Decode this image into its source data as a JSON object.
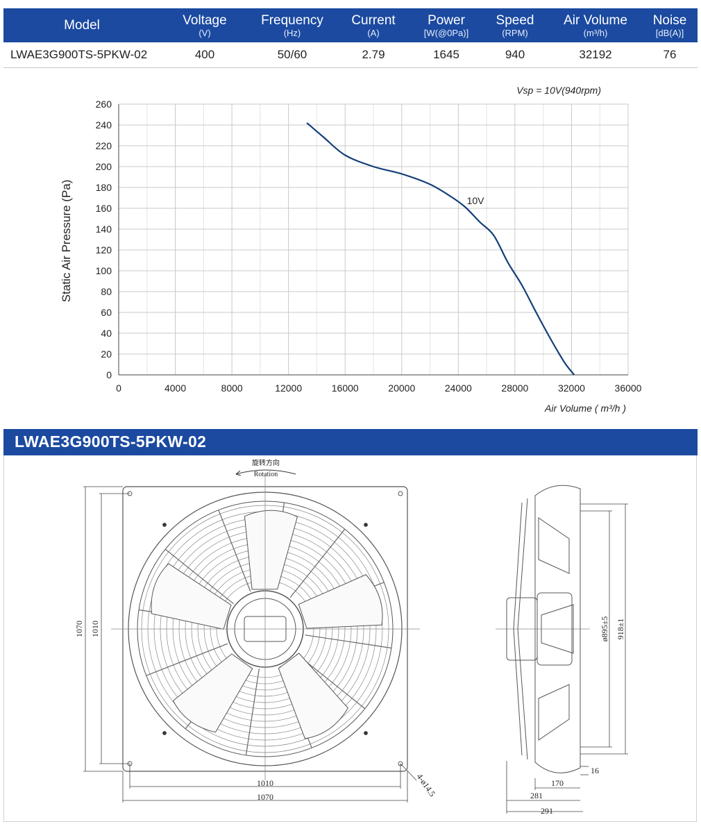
{
  "spec_table": {
    "headers": [
      {
        "label": "Model",
        "unit": ""
      },
      {
        "label": "Voltage",
        "unit": "(V)"
      },
      {
        "label": "Frequency",
        "unit": "(Hz)"
      },
      {
        "label": "Current",
        "unit": "(A)"
      },
      {
        "label": "Power",
        "unit": "[W(@0Pa)]"
      },
      {
        "label": "Speed",
        "unit": "(RPM)"
      },
      {
        "label": "Air Volume",
        "unit": "(m³/h)"
      },
      {
        "label": "Noise",
        "unit": "[dB(A)]"
      }
    ],
    "row": [
      "LWAE3G900TS-5PKW-02",
      "400",
      "50/60",
      "2.79",
      "1645",
      "940",
      "32192",
      "76"
    ]
  },
  "chart_data": {
    "type": "line",
    "title": "Vsp = 10V(940rpm)",
    "xlabel": "Air Volume ( m³/h )",
    "ylabel": "Static Air Pressure  (Pa)",
    "xlim": [
      0,
      36000
    ],
    "ylim": [
      0,
      260
    ],
    "x_ticks": [
      0,
      4000,
      8000,
      12000,
      16000,
      20000,
      24000,
      28000,
      32000,
      36000
    ],
    "y_ticks": [
      0,
      20,
      40,
      60,
      80,
      100,
      120,
      140,
      160,
      180,
      200,
      220,
      240,
      260
    ],
    "grid": true,
    "color": "#123e78",
    "series": [
      {
        "name": "10V",
        "x": [
          13300,
          14500,
          16000,
          18000,
          20000,
          22000,
          23500,
          24500,
          25500,
          26500,
          27500,
          28500,
          29500,
          30500,
          31500,
          32192
        ],
        "y": [
          242,
          228,
          211,
          200,
          193,
          183,
          171,
          161,
          147,
          134,
          108,
          86,
          60,
          35,
          12,
          0
        ]
      }
    ]
  },
  "drawing": {
    "title": "LWAE3G900TS-5PKW-02",
    "rotation_cn": "旋转方向",
    "rotation_en": "Rotation",
    "dims": {
      "outer": "1070",
      "inner": "1010",
      "holes": "4-ø14.5",
      "dia_895": "ø895±5",
      "dia_918": "918±1",
      "d16": "16",
      "d170": "170",
      "d281": "281",
      "d291": "291"
    }
  }
}
